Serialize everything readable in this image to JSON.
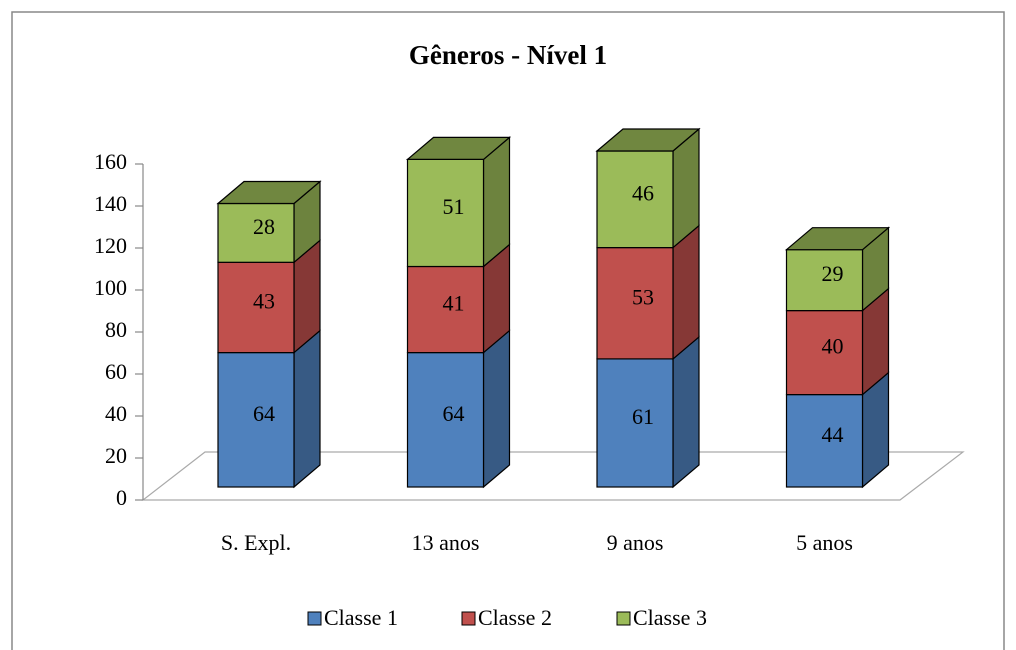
{
  "chart_data": {
    "type": "bar3d_stacked",
    "title": "Gêneros - Nível 1",
    "categories": [
      "S. Expl.",
      "13 anos",
      "9 anos",
      "5 anos"
    ],
    "series": [
      {
        "name": "Classe 1",
        "color": "#4f81bd",
        "values": [
          64,
          64,
          61,
          44
        ]
      },
      {
        "name": "Classe 2",
        "color": "#c0504d",
        "values": [
          43,
          41,
          53,
          40
        ]
      },
      {
        "name": "Classe 3",
        "color": "#9bbb59",
        "values": [
          28,
          51,
          46,
          29
        ]
      }
    ],
    "ylim": [
      0,
      160
    ],
    "yticks": [
      0,
      20,
      40,
      60,
      80,
      100,
      120,
      140,
      160
    ],
    "legend": "bottom"
  }
}
